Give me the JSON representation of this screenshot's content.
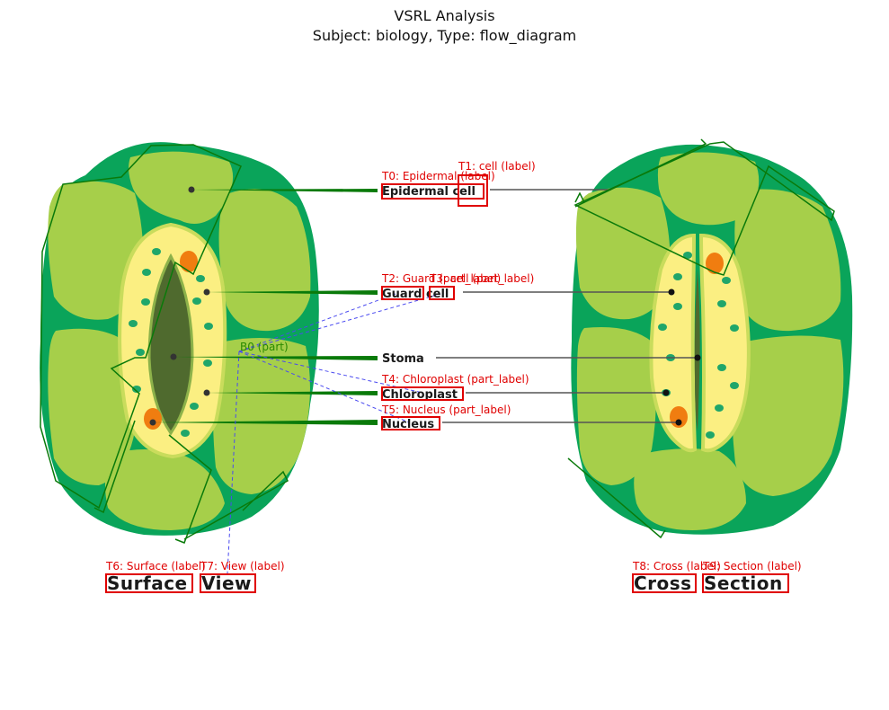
{
  "header": {
    "title": "VSRL Analysis",
    "subtitle": "Subject: biology, Type: flow_diagram"
  },
  "labels": {
    "epidermal_cell": "Epidermal cell",
    "guard_cell": "Guard cell",
    "stoma": "Stoma",
    "chloroplast": "Chloroplast",
    "nucleus": "Nucleus",
    "surface": "Surface",
    "view": "View",
    "cross": "Cross",
    "section": "Section"
  },
  "annotations": {
    "t0": "T0: Epidermal (label)",
    "t1": "T1: cell (label)",
    "t2": "T2: Guard (part_label)",
    "t3": "T3: cell (part_label)",
    "t4": "T4: Chloroplast (part_label)",
    "t5": "T5: Nucleus (part_label)",
    "t6": "T6: Surface (label)",
    "t7": "T7: View (label)",
    "t8": "T8: Cross (label)",
    "t9": "T9: Section (label)",
    "b0": "B0 (part)"
  },
  "colors": {
    "outer_green": "#0aa45a",
    "cell_green": "#a6cf4a",
    "guard_yellow": "#fbef82",
    "pore_dark": "#4f6a2e",
    "chloroplast": "#1fa66a",
    "nucleus_orange": "#f07d10",
    "annotation_red": "#e00000",
    "overlay_green": "#0a7a0a",
    "link_blue": "#4a4af0"
  }
}
